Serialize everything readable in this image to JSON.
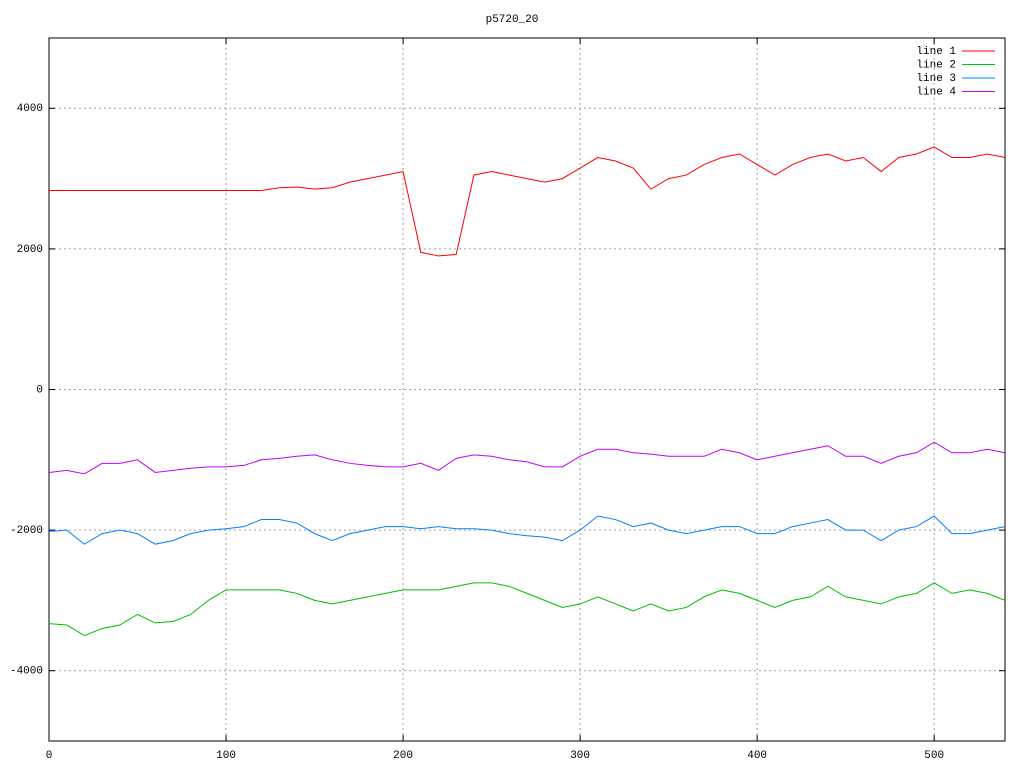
{
  "chart_data": {
    "type": "line",
    "title": "p5720_20",
    "x": [
      0,
      10,
      20,
      30,
      40,
      50,
      60,
      70,
      80,
      90,
      100,
      110,
      120,
      130,
      140,
      150,
      160,
      170,
      180,
      190,
      200,
      210,
      220,
      230,
      240,
      250,
      260,
      270,
      280,
      290,
      300,
      310,
      320,
      330,
      340,
      350,
      360,
      370,
      380,
      390,
      400,
      410,
      420,
      430,
      440,
      450,
      460,
      470,
      480,
      490,
      500,
      510,
      520,
      530,
      540
    ],
    "series": [
      {
        "name": "line 1",
        "color": "#ff0000",
        "values": [
          2830,
          2830,
          2830,
          2830,
          2830,
          2830,
          2830,
          2830,
          2830,
          2830,
          2830,
          2830,
          2830,
          2870,
          2880,
          2850,
          2870,
          2950,
          3000,
          3050,
          3100,
          1950,
          1900,
          1920,
          3050,
          3100,
          3050,
          3000,
          2950,
          3000,
          3150,
          3300,
          3250,
          3150,
          2850,
          3000,
          3050,
          3200,
          3300,
          3350,
          3200,
          3050,
          3200,
          3300,
          3350,
          3250,
          3300,
          3100,
          3300,
          3350,
          3450,
          3300,
          3300,
          3350,
          3300
        ]
      },
      {
        "name": "line 2",
        "color": "#00c000",
        "values": [
          -3330,
          -3350,
          -3500,
          -3400,
          -3350,
          -3200,
          -3320,
          -3300,
          -3200,
          -3000,
          -2850,
          -2850,
          -2850,
          -2850,
          -2900,
          -3000,
          -3050,
          -3000,
          -2950,
          -2900,
          -2850,
          -2850,
          -2850,
          -2800,
          -2750,
          -2750,
          -2800,
          -2900,
          -3000,
          -3100,
          -3050,
          -2950,
          -3050,
          -3150,
          -3050,
          -3150,
          -3100,
          -2950,
          -2850,
          -2900,
          -3000,
          -3100,
          -3000,
          -2950,
          -2800,
          -2950,
          -3000,
          -3050,
          -2950,
          -2900,
          -2750,
          -2900,
          -2850,
          -2900,
          -3000
        ]
      },
      {
        "name": "line 3",
        "color": "#0080ff",
        "values": [
          -2020,
          -2000,
          -2200,
          -2050,
          -2000,
          -2050,
          -2200,
          -2150,
          -2050,
          -2000,
          -1980,
          -1950,
          -1850,
          -1850,
          -1900,
          -2050,
          -2150,
          -2050,
          -2000,
          -1950,
          -1950,
          -1980,
          -1950,
          -1980,
          -1980,
          -2000,
          -2050,
          -2080,
          -2100,
          -2150,
          -2000,
          -1800,
          -1850,
          -1950,
          -1900,
          -2000,
          -2050,
          -2000,
          -1950,
          -1950,
          -2050,
          -2050,
          -1950,
          -1900,
          -1850,
          -2000,
          -2000,
          -2150,
          -2000,
          -1950,
          -1800,
          -2050,
          -2050,
          -2000,
          -1950
        ]
      },
      {
        "name": "line 4",
        "color": "#c000ff",
        "values": [
          -1180,
          -1150,
          -1200,
          -1050,
          -1050,
          -1000,
          -1180,
          -1150,
          -1120,
          -1100,
          -1100,
          -1080,
          -1000,
          -980,
          -950,
          -930,
          -1000,
          -1050,
          -1080,
          -1100,
          -1100,
          -1050,
          -1150,
          -980,
          -930,
          -950,
          -1000,
          -1030,
          -1100,
          -1100,
          -950,
          -850,
          -850,
          -900,
          -920,
          -950,
          -950,
          -950,
          -850,
          -900,
          -1000,
          -950,
          -900,
          -850,
          -800,
          -950,
          -950,
          -1050,
          -950,
          -900,
          -750,
          -900,
          -900,
          -850,
          -900
        ]
      }
    ],
    "xlim": [
      0,
      540
    ],
    "xticks": [
      0,
      100,
      200,
      300,
      400,
      500
    ],
    "ylim": [
      -5000,
      5000
    ],
    "yticks": [
      -4000,
      -2000,
      0,
      2000,
      4000
    ],
    "grid": true,
    "legend": "top-right"
  }
}
